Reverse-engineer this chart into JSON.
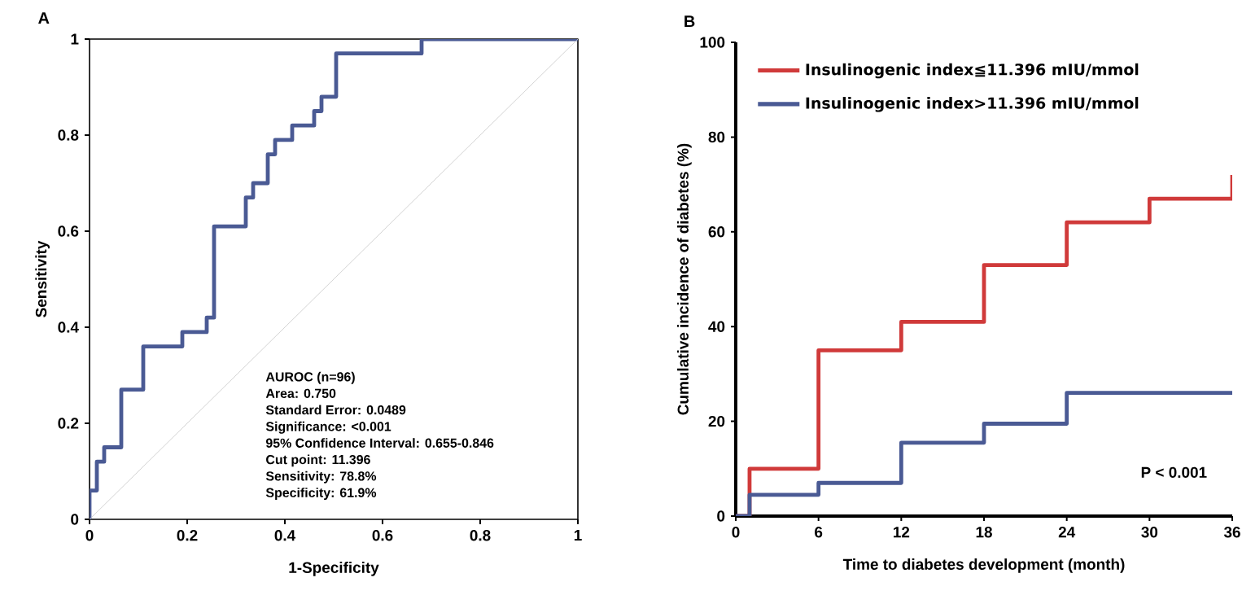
{
  "chart_data": [
    {
      "type": "step",
      "title": "A",
      "xlabel": "1-Specificity",
      "ylabel": "Sensitivity",
      "xlim": [
        0,
        1
      ],
      "ylim": [
        0,
        1
      ],
      "xticks": [
        0,
        0.2,
        0.4,
        0.6,
        0.8,
        1
      ],
      "yticks": [
        0,
        0.2,
        0.4,
        0.6,
        0.8,
        1
      ],
      "series": [
        {
          "color": "#4a5a94",
          "x": [
            0,
            0,
            0.015,
            0.03,
            0.065,
            0.11,
            0.19,
            0.24,
            0.255,
            0.32,
            0.335,
            0.365,
            0.38,
            0.415,
            0.46,
            0.475,
            0.505,
            0.68,
            1
          ],
          "values": [
            0,
            0.06,
            0.12,
            0.15,
            0.27,
            0.36,
            0.39,
            0.42,
            0.61,
            0.67,
            0.7,
            0.76,
            0.79,
            0.82,
            0.85,
            0.88,
            0.97,
            1,
            1
          ]
        },
        {
          "type": "line",
          "color": "#c8c8c8",
          "x": [
            0,
            1
          ],
          "values": [
            0,
            1
          ]
        }
      ],
      "annotations": [
        "AUROC (n=96)",
        "Area: 0.750",
        "Standard Error: 0.0489",
        "Significance: <0.001",
        "95% Confidence Interval: 0.655-0.846",
        "Cut point: 11.396",
        "Sensitivity: 78.8%",
        "Specificity: 61.9%"
      ]
    },
    {
      "type": "step",
      "title": "B",
      "xlabel": "Time to diabetes development (month)",
      "ylabel": "Cumulative incidence of diabetes (%)",
      "xlim": [
        0,
        36
      ],
      "ylim": [
        0,
        100
      ],
      "xticks": [
        0,
        6,
        12,
        18,
        24,
        30,
        36
      ],
      "yticks": [
        0,
        20,
        40,
        60,
        80,
        100
      ],
      "legend": "top left",
      "series": [
        {
          "name": "Insulinogenic index≦11.396 mIU/mmol",
          "color": "#d03a3a",
          "x": [
            0,
            1,
            6,
            12,
            18,
            24,
            30,
            36
          ],
          "values": [
            0,
            10,
            35,
            41,
            53,
            62,
            67,
            72
          ]
        },
        {
          "name": "Insulinogenic index>11.396 mIU/mmol",
          "color": "#4a5a94",
          "x": [
            0,
            1,
            6,
            12,
            18,
            24,
            36
          ],
          "values": [
            0,
            4.5,
            7,
            15.5,
            19.5,
            26,
            26
          ]
        }
      ],
      "annotations": [
        "P < 0.001"
      ]
    }
  ]
}
